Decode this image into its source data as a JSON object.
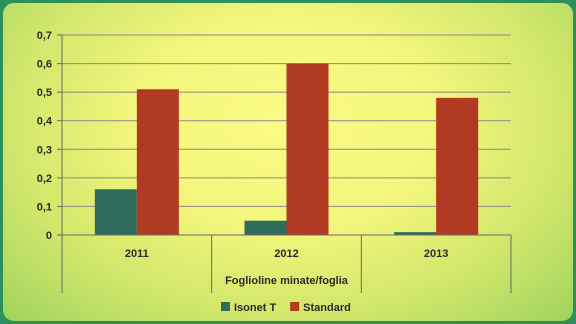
{
  "chart_data": {
    "type": "bar",
    "categories": [
      "2011",
      "2012",
      "2013"
    ],
    "series": [
      {
        "name": "Isonet T",
        "values": [
          0.16,
          0.05,
          0.01
        ],
        "color": "#2f6b5a"
      },
      {
        "name": "Standard",
        "values": [
          0.51,
          0.6,
          0.48
        ],
        "color": "#b13a22"
      }
    ],
    "yticks": [
      "0",
      "0,1",
      "0,2",
      "0,3",
      "0,4",
      "0,5",
      "0,6",
      "0,7"
    ],
    "ylim": [
      0,
      0.7
    ],
    "xlabel": "Foglioline minate/foglia",
    "ylabel": "",
    "title": "",
    "grid": true,
    "legend_position": "bottom"
  }
}
